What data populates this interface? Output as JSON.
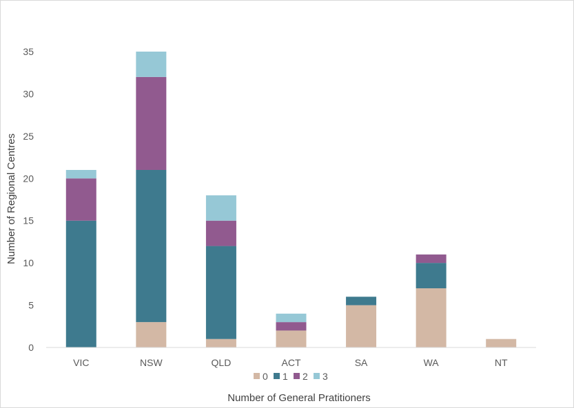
{
  "chart_data": {
    "type": "bar",
    "stacked": true,
    "categories": [
      "VIC",
      "NSW",
      "QLD",
      "ACT",
      "SA",
      "WA",
      "NT"
    ],
    "series": [
      {
        "name": "0",
        "color": "#d3b8a5",
        "values": [
          0,
          3,
          1,
          2,
          5,
          7,
          1
        ]
      },
      {
        "name": "1",
        "color": "#3e7a8e",
        "values": [
          15,
          18,
          11,
          0,
          1,
          3,
          0
        ]
      },
      {
        "name": "2",
        "color": "#915a8f",
        "values": [
          5,
          11,
          3,
          1,
          0,
          1,
          0
        ]
      },
      {
        "name": "3",
        "color": "#96c8d6",
        "values": [
          1,
          3,
          3,
          1,
          0,
          0,
          0
        ]
      }
    ],
    "xlabel": "Number of General Pratitioners",
    "ylabel": "Number of Regional Centres",
    "ylim": [
      0,
      35
    ],
    "yticks": [
      0,
      5,
      10,
      15,
      20,
      25,
      30,
      35
    ],
    "grid": false,
    "legend": "bottom"
  }
}
